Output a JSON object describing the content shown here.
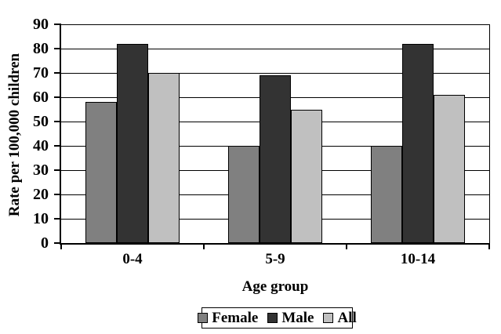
{
  "chart_data": {
    "type": "bar",
    "title": "",
    "categories": [
      "0-4",
      "5-9",
      "10-14"
    ],
    "series": [
      {
        "name": "Female",
        "color": "#808080",
        "values": [
          58,
          40,
          40
        ]
      },
      {
        "name": "Male",
        "color": "#333333",
        "values": [
          82,
          69,
          82
        ]
      },
      {
        "name": "All",
        "color": "#C0C0C0",
        "values": [
          70,
          55,
          61
        ]
      }
    ],
    "xlabel": "Age group",
    "ylabel": "Rate per 100,000 children",
    "ylim": [
      0,
      90
    ],
    "yticks": [
      0,
      10,
      20,
      30,
      40,
      50,
      60,
      70,
      80,
      90
    ],
    "grid": true,
    "legend_position": "bottom-center",
    "bar_border_color": "#000000",
    "axis_color": "#000000",
    "background_color": "#FFFFFF"
  }
}
